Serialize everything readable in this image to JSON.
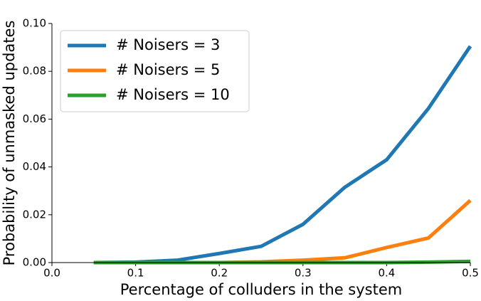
{
  "chart_data": {
    "type": "line",
    "x_label": "Percentage of colluders in the system",
    "y_label": "Probability of unmasked updates",
    "x": [
      0.05,
      0.1,
      0.15,
      0.2,
      0.25,
      0.3,
      0.35,
      0.4,
      0.45,
      0.5
    ],
    "series": [
      {
        "name": "# Noisers = 3",
        "color": "#1f77b4",
        "values": [
          0,
          0.0002,
          0.001,
          0.0038,
          0.0068,
          0.016,
          0.0315,
          0.043,
          0.0645,
          0.0905
        ]
      },
      {
        "name": "# Noisers = 5",
        "color": "#ff7f0e",
        "values": [
          0,
          0,
          0,
          0,
          0.0003,
          0.001,
          0.002,
          0.0063,
          0.0103,
          0.026
        ]
      },
      {
        "name": "# Noisers = 10",
        "color": "#2ca02c",
        "values": [
          0,
          0,
          0,
          0,
          0,
          0,
          0,
          0,
          0.0002,
          0.0005
        ]
      }
    ],
    "xlim": [
      0,
      0.5
    ],
    "ylim": [
      0,
      0.1
    ],
    "xticks": [
      {
        "value": 0,
        "label": "0.0"
      },
      0.1,
      0.2,
      0.3,
      0.4,
      0.5
    ],
    "yticks": [
      {
        "value": 0,
        "label": "0.00"
      },
      {
        "value": 0.02,
        "label": "0.02"
      },
      {
        "value": 0.04,
        "label": "0.04"
      },
      {
        "value": 0.06,
        "label": "0.06"
      },
      {
        "value": 0.08,
        "label": "0.08"
      },
      {
        "value": 0.1,
        "label": "0.10"
      }
    ],
    "legend": "upper left"
  }
}
